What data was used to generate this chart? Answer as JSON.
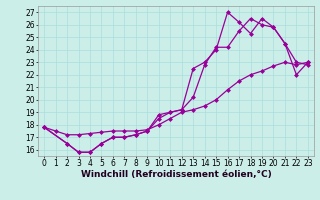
{
  "xlabel": "Windchill (Refroidissement éolien,°C)",
  "background_color": "#cceee8",
  "grid_color": "#aadddd",
  "line_color": "#990099",
  "xlim": [
    -0.5,
    23.5
  ],
  "ylim": [
    15.5,
    27.5
  ],
  "xticks": [
    0,
    1,
    2,
    3,
    4,
    5,
    6,
    7,
    8,
    9,
    10,
    11,
    12,
    13,
    14,
    15,
    16,
    17,
    18,
    19,
    20,
    21,
    22,
    23
  ],
  "yticks": [
    16,
    17,
    18,
    19,
    20,
    21,
    22,
    23,
    24,
    25,
    26,
    27
  ],
  "line1_x": [
    0,
    1,
    2,
    3,
    4,
    5,
    6,
    7,
    8,
    9,
    10,
    11,
    12,
    13,
    14,
    15,
    16,
    17,
    18,
    19,
    20,
    21,
    22,
    23
  ],
  "line1_y": [
    17.8,
    17.5,
    17.2,
    17.2,
    17.3,
    17.4,
    17.5,
    17.5,
    17.5,
    17.6,
    18.0,
    18.5,
    19.0,
    19.2,
    19.5,
    20.0,
    20.8,
    21.5,
    22.0,
    22.3,
    22.7,
    23.0,
    22.8,
    23.0
  ],
  "line2_x": [
    0,
    2,
    3,
    4,
    5,
    6,
    7,
    8,
    9,
    10,
    11,
    12,
    13,
    14,
    15,
    16,
    17,
    18,
    19,
    20,
    21,
    22,
    23
  ],
  "line2_y": [
    17.8,
    16.5,
    15.8,
    15.8,
    16.5,
    17.0,
    17.0,
    17.2,
    17.5,
    18.8,
    19.0,
    19.2,
    22.5,
    23.0,
    24.0,
    27.0,
    26.2,
    25.3,
    26.5,
    25.8,
    24.5,
    23.0,
    22.8
  ],
  "line3_x": [
    0,
    2,
    3,
    4,
    5,
    6,
    7,
    8,
    9,
    10,
    11,
    12,
    13,
    14,
    15,
    16,
    17,
    18,
    19,
    20,
    21,
    22,
    23
  ],
  "line3_y": [
    17.8,
    16.5,
    15.8,
    15.8,
    16.5,
    17.0,
    17.0,
    17.2,
    17.5,
    18.5,
    19.0,
    19.2,
    20.2,
    22.8,
    24.2,
    24.2,
    25.5,
    26.5,
    26.0,
    25.8,
    24.5,
    22.0,
    23.0
  ],
  "markersize": 2.5,
  "linewidth": 0.9,
  "xlabel_fontsize": 6.5,
  "tick_fontsize": 5.5
}
